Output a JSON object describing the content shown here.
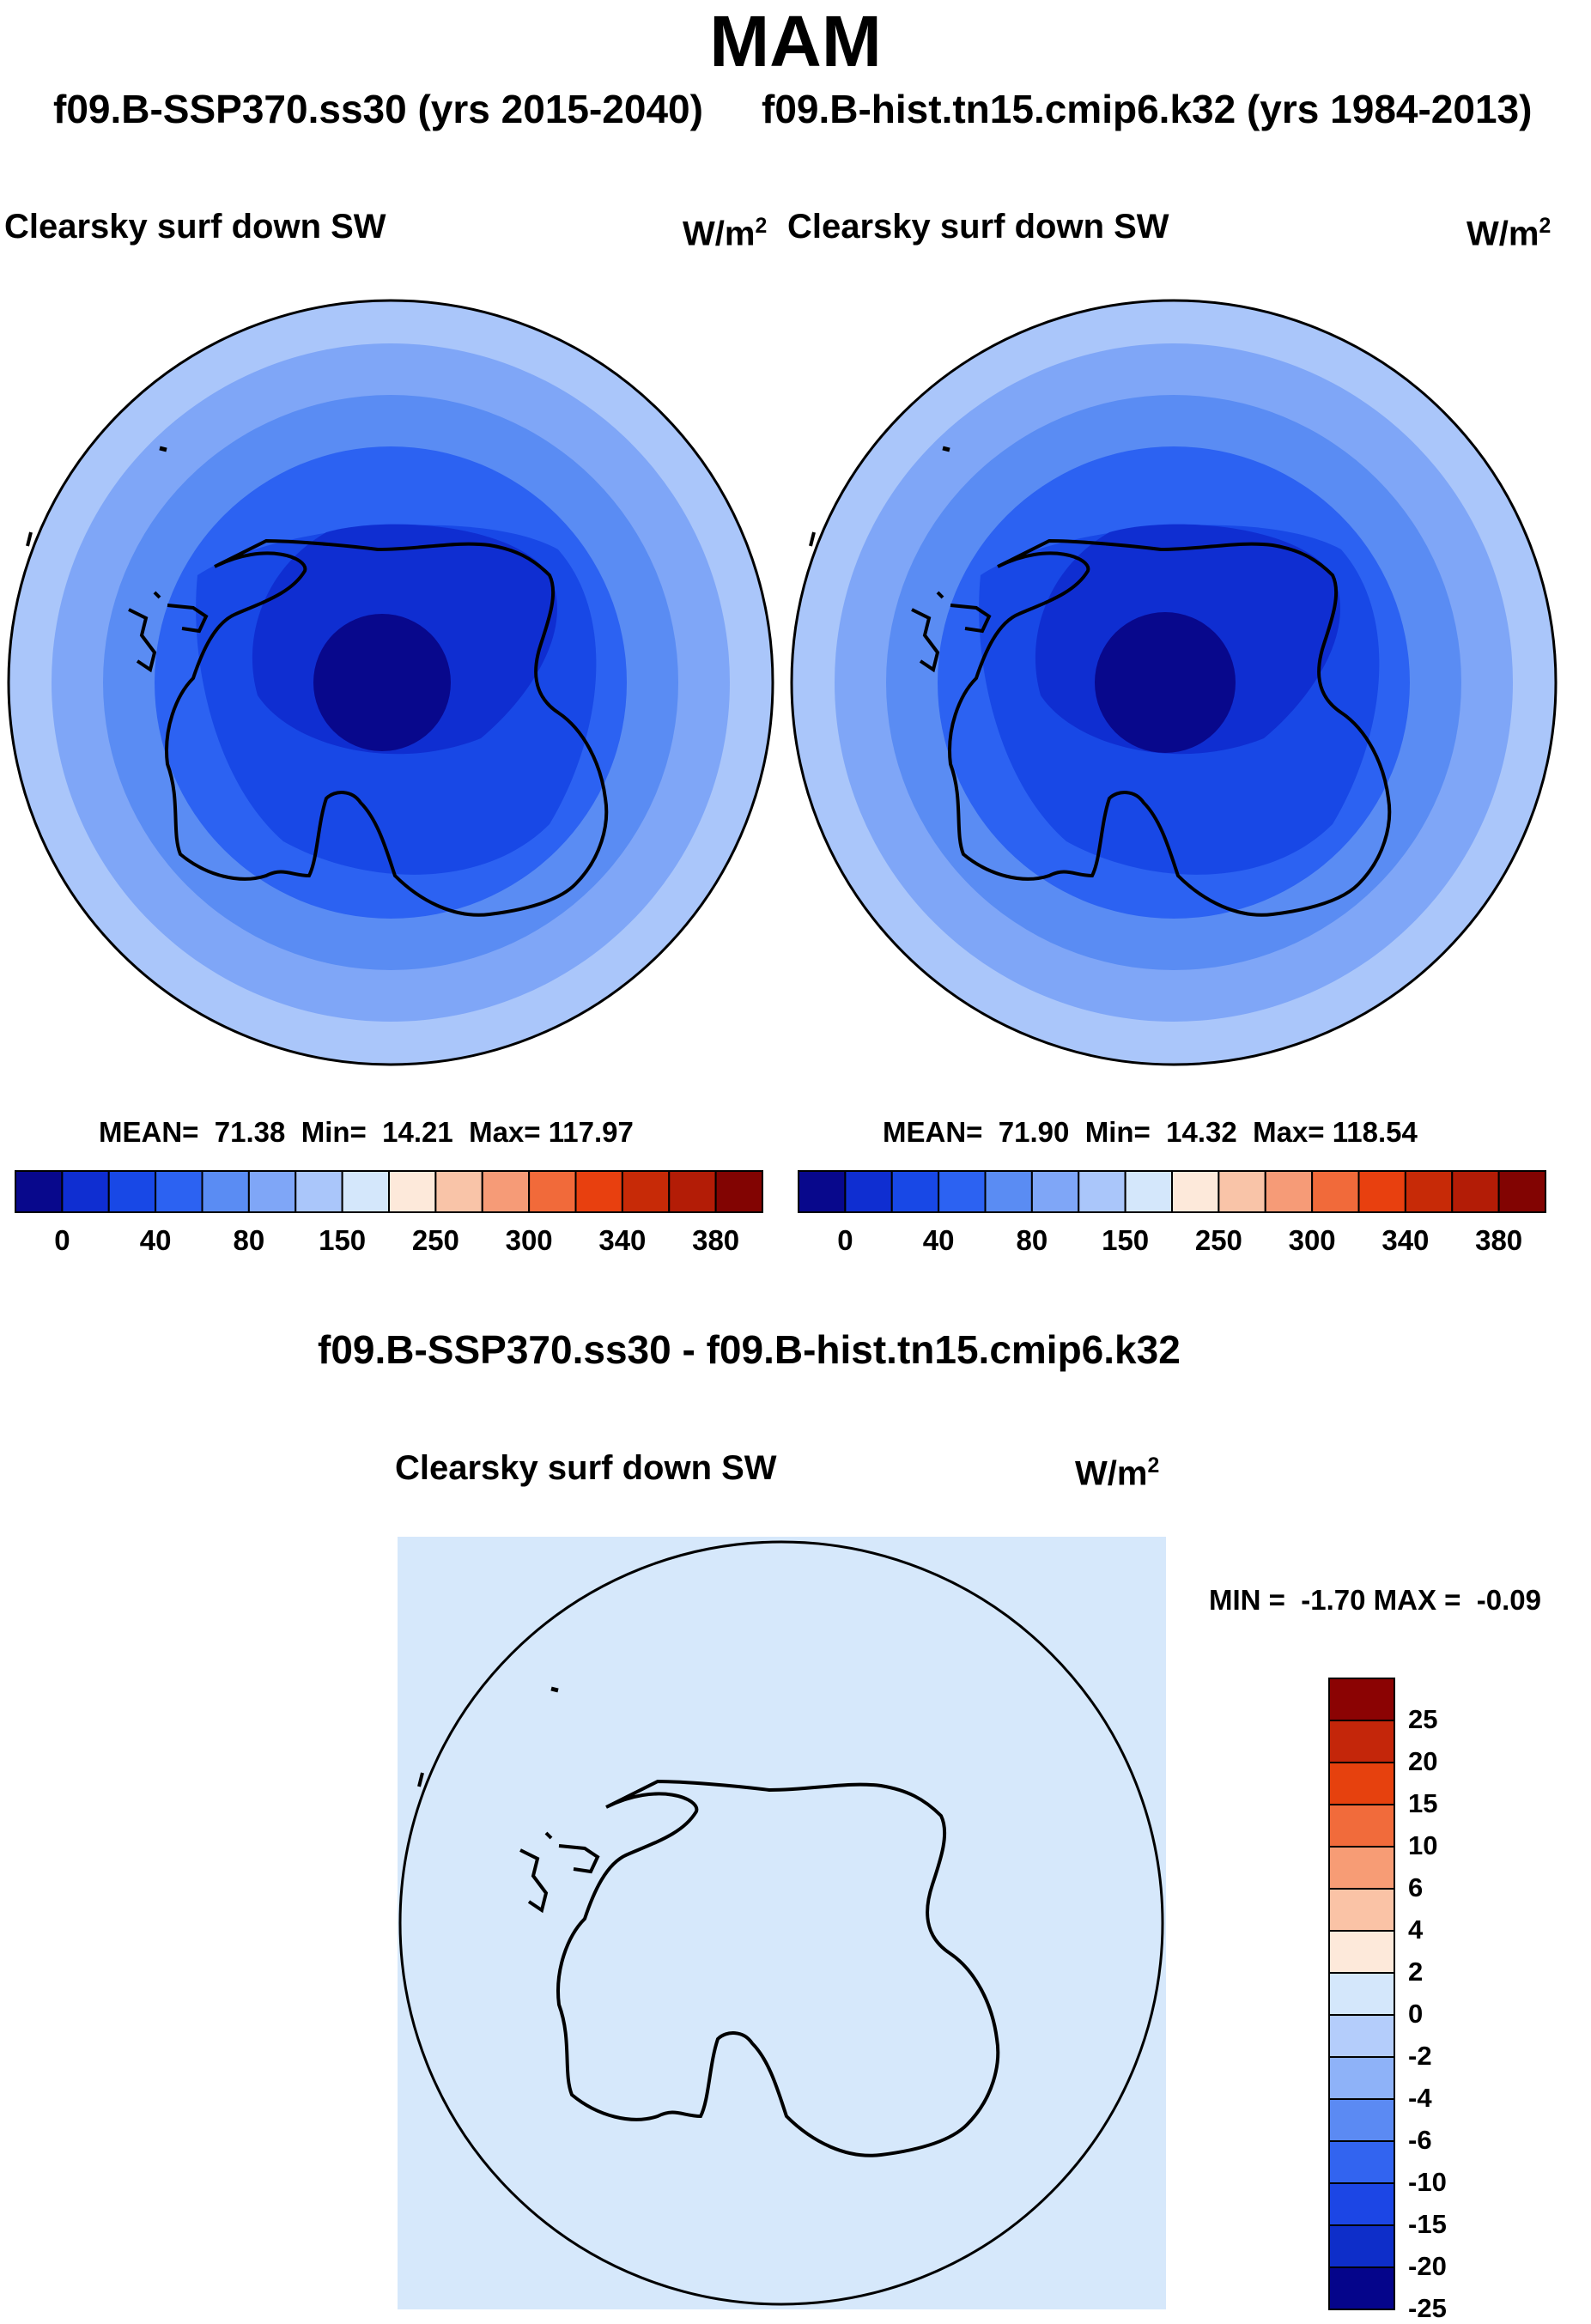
{
  "title": "MAM",
  "subtitle_left": "f09.B-SSP370.ss30 (yrs 2015-2040)",
  "subtitle_right": "f09.B-hist.tn15.cmip6.k32 (yrs 1984-2013)",
  "units_base": "W/m",
  "units_exp": "2",
  "colors": {
    "abs_levels": [
      "#08088c",
      "#0f2ed1",
      "#1848e6",
      "#2c62f2",
      "#5a8cf3",
      "#7fa6f7",
      "#aac6fa",
      "#d4e7fb",
      "#fde9da",
      "#f9c4a8",
      "#f69b77",
      "#f16a3a",
      "#e8400f",
      "#c72a07",
      "#b31c06",
      "#820402"
    ],
    "diff_levels": [
      "#05058b",
      "#0e2ec9",
      "#1c46e5",
      "#3264f0",
      "#5b8af3",
      "#8eb2f8",
      "#b4cdfb",
      "#d4e7fb",
      "#fde9da",
      "#fac3a6",
      "#f79c75",
      "#f16b3b",
      "#e6410e",
      "#c4260a",
      "#8b0303"
    ],
    "map_background_diff": "#d6e8fb"
  },
  "left_panel": {
    "variable": "Clearsky surf down SW",
    "stats": {
      "mean_label": "MEAN=",
      "mean": "71.38",
      "min_label": "Min=",
      "min": "14.21",
      "max_label": "Max=",
      "max": "117.97"
    }
  },
  "right_panel": {
    "variable": "Clearsky surf down SW",
    "stats": {
      "mean_label": "MEAN=",
      "mean": "71.90",
      "min_label": "Min=",
      "min": "14.32",
      "max_label": "Max=",
      "max": "118.54"
    }
  },
  "abs_colorbar_labels": [
    "0",
    "40",
    "80",
    "150",
    "250",
    "300",
    "340",
    "380"
  ],
  "diff_title": "f09.B-SSP370.ss30 - f09.B-hist.tn15.cmip6.k32",
  "diff_panel": {
    "variable": "Clearsky surf down SW",
    "minmax": {
      "min_label": "MIN =",
      "min": "-1.70",
      "max_label": "MAX =",
      "max": "-0.09"
    }
  },
  "diff_colorbar_labels": [
    "25",
    "20",
    "15",
    "10",
    "6",
    "4",
    "2",
    "0",
    "-2",
    "-4",
    "-6",
    "-10",
    "-15",
    "-20",
    "-25"
  ]
}
